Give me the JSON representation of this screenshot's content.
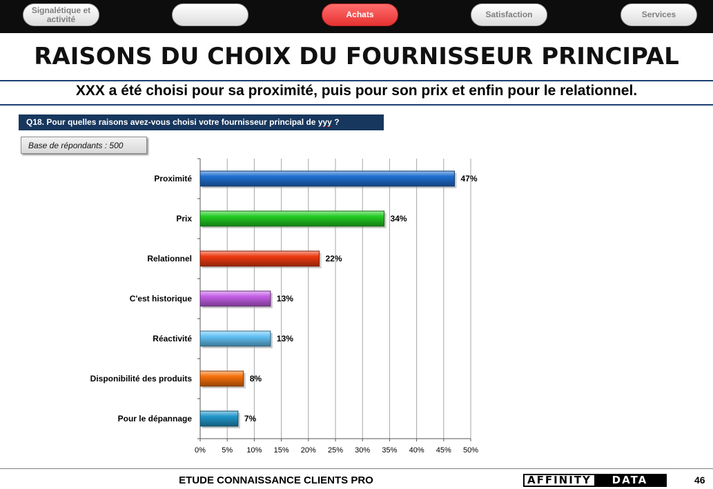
{
  "nav": {
    "tabs": [
      {
        "label": "Signalétique et activité"
      },
      {
        "label": ""
      },
      {
        "label": "Achats"
      },
      {
        "label": "Satisfaction"
      },
      {
        "label": "Services"
      }
    ]
  },
  "page": {
    "title": "RAISONS DU CHOIX DU FOURNISSEUR PRINCIPAL",
    "subtitle": "XXX a été choisi pour sa proximité, puis pour son prix et enfin pour le relationnel.",
    "question_prefix": "Q18.",
    "question_text": "Pour quelles raisons avez-vous choisi votre fournisseur principal de",
    "question_code": "yyy",
    "question_mark": "?",
    "base": "Base de répondants  : 500"
  },
  "footer": {
    "study": "ETUDE CONNAISSANCE CLIENTS PRO",
    "logo_left": "AFFINITY",
    "logo_right": "DATA",
    "page_number": "46"
  },
  "chart_data": {
    "type": "bar",
    "orientation": "horizontal",
    "categories": [
      "Proximité",
      "Prix",
      "Relationnel",
      "C'est historique",
      "Réactivité",
      "Disponibilité des produits",
      "Pour le dépannage"
    ],
    "values": [
      47,
      34,
      22,
      13,
      13,
      8,
      7
    ],
    "value_labels": [
      "47%",
      "34%",
      "22%",
      "13%",
      "13%",
      "8%",
      "7%"
    ],
    "colors": [
      "#1f6fd0",
      "#22cc22",
      "#ee3a10",
      "#c45ee6",
      "#62c2f4",
      "#f5700a",
      "#2196c9"
    ],
    "xlim": [
      0,
      50
    ],
    "xticks": [
      "0%",
      "5%",
      "10%",
      "15%",
      "20%",
      "25%",
      "30%",
      "35%",
      "40%",
      "45%",
      "50%"
    ],
    "grid": true
  }
}
